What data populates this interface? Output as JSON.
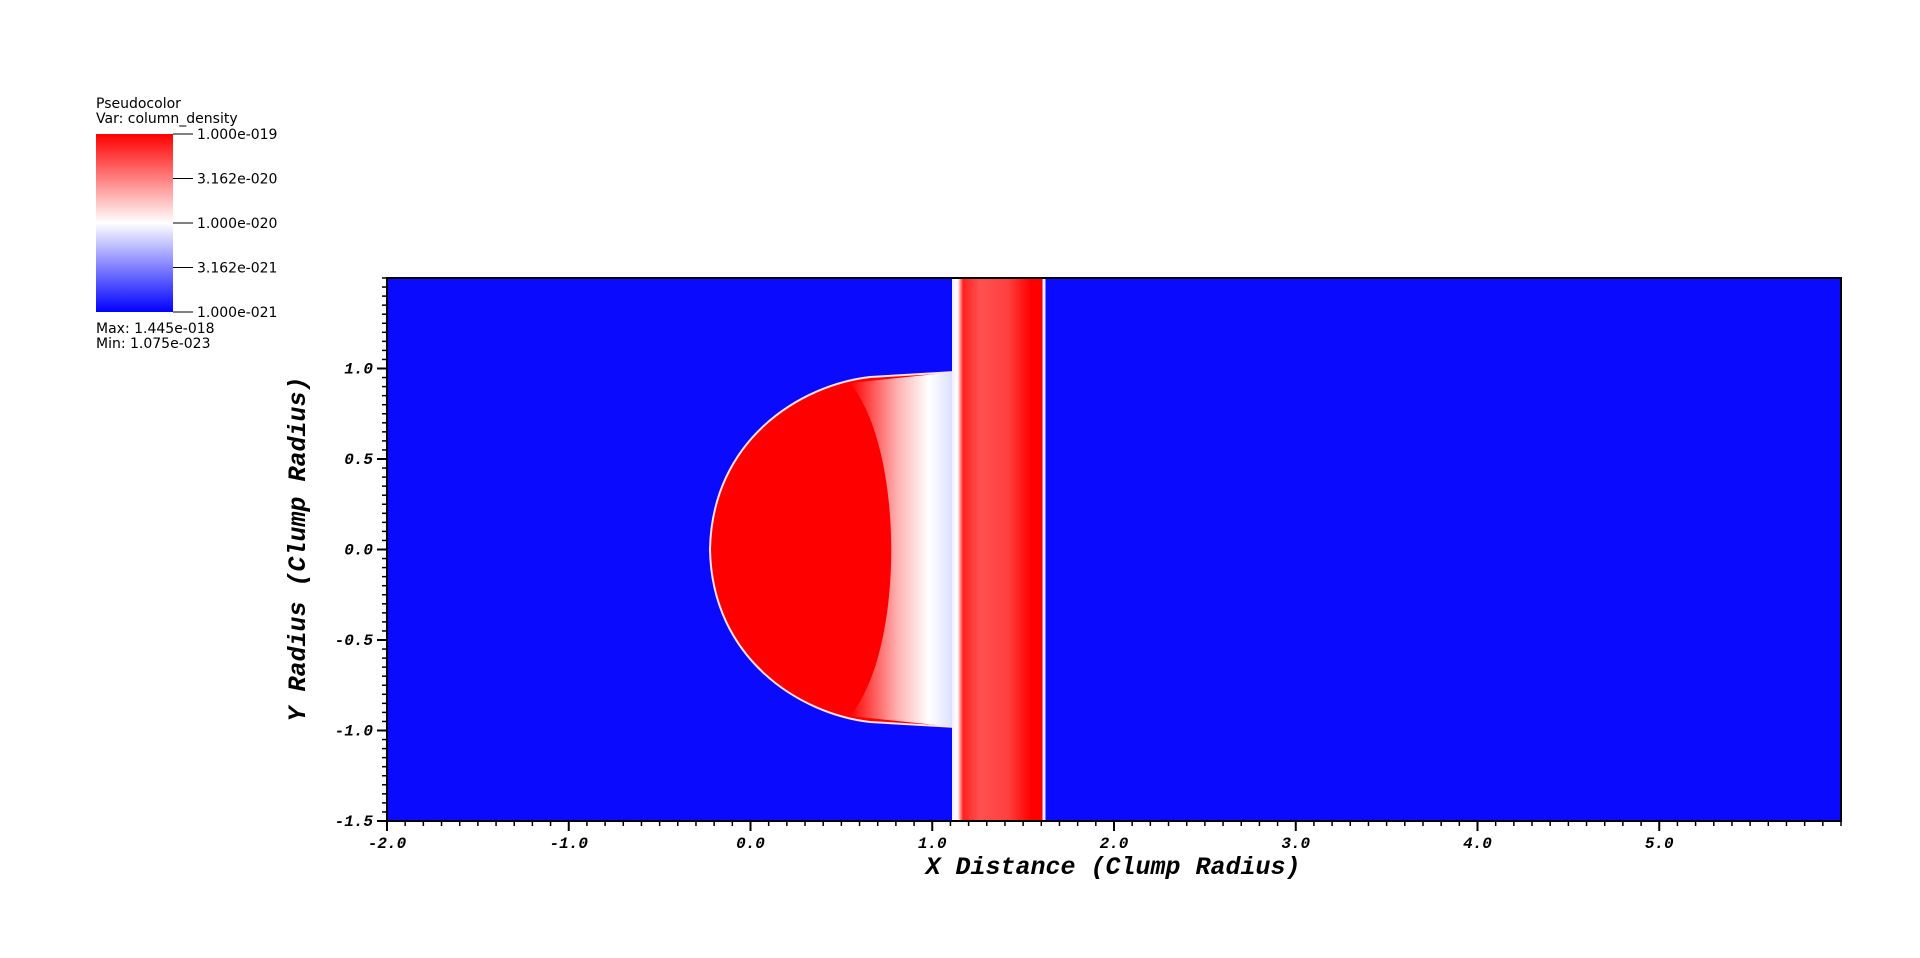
{
  "chart_data": {
    "type": "pseudocolor",
    "xlabel": "X Distance (Clump Radius)",
    "ylabel": "Y Radius (Clump Radius)",
    "xlim": [
      -2.0,
      6.0
    ],
    "ylim": [
      -1.5,
      1.5
    ],
    "xticks": [
      {
        "value": -2,
        "label": "-2.0"
      },
      {
        "value": -1,
        "label": "-1.0"
      },
      {
        "value": 0,
        "label": "0.0"
      },
      {
        "value": 1,
        "label": "1.0"
      },
      {
        "value": 2,
        "label": "2.0"
      },
      {
        "value": 3,
        "label": "3.0"
      },
      {
        "value": 4,
        "label": "4.0"
      },
      {
        "value": 5,
        "label": "5.0"
      }
    ],
    "yticks": [
      {
        "value": -1.5,
        "label": "-1.5"
      },
      {
        "value": -1,
        "label": "-1.0"
      },
      {
        "value": -0.5,
        "label": "-0.5"
      },
      {
        "value": 0,
        "label": "0.0"
      },
      {
        "value": 0.5,
        "label": "0.5"
      },
      {
        "value": 1,
        "label": "1.0"
      }
    ],
    "legend": {
      "title": "Pseudocolor",
      "variable": "Var: column_density",
      "scale": "log",
      "range": [
        1e-21,
        1e-19
      ],
      "colors": [
        "#0000ff",
        "#ffffff",
        "#ff0000"
      ],
      "ticks": [
        {
          "value": 1e-19,
          "label": "1.000e-019"
        },
        {
          "value": 3.162e-20,
          "label": "3.162e-020"
        },
        {
          "value": 1e-20,
          "label": "1.000e-020"
        },
        {
          "value": 3.162e-21,
          "label": "3.162e-021"
        },
        {
          "value": 1e-21,
          "label": "1.000e-021"
        }
      ],
      "stats": [
        "Max:  1.445e-018",
        "Min:  1.075e-023"
      ]
    }
  }
}
